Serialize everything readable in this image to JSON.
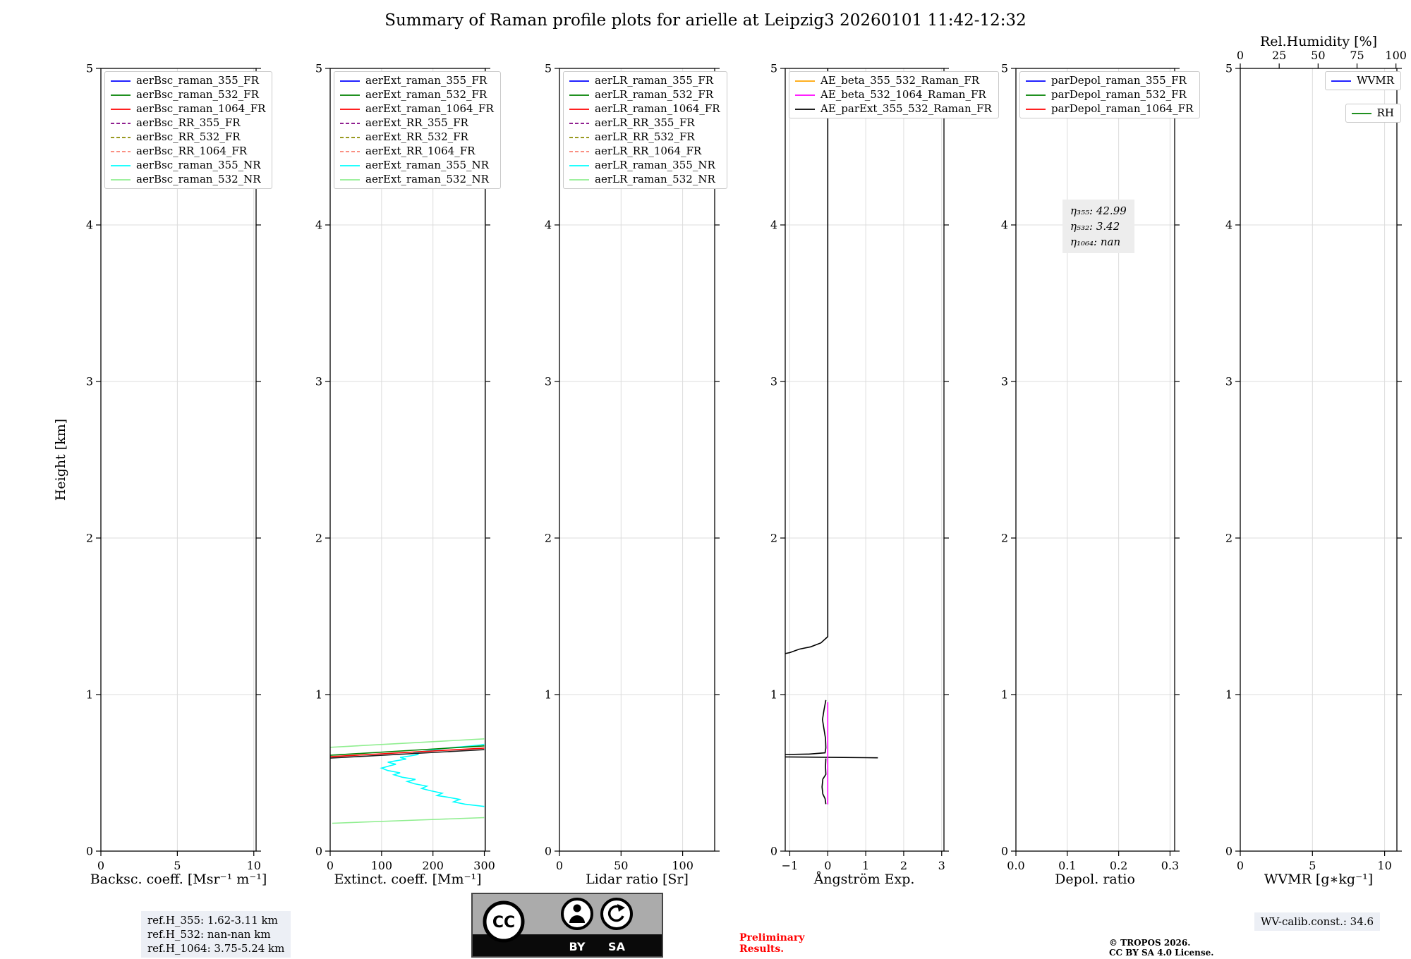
{
  "title": "Summary of Raman profile plots for arielle at Leipzig3 20260101 11:42-12:32",
  "chart_data": {
    "type": "line",
    "ylabel": "Height [km]",
    "ylim": [
      0,
      5
    ],
    "yticks": [
      0,
      1,
      2,
      3,
      4,
      5
    ],
    "panels": [
      {
        "name": "backscatter",
        "xlabel": "Backsc. coeff. [Msr⁻¹ m⁻¹]",
        "xlim": [
          0,
          10.15
        ],
        "xticks": [
          {
            "v": 0,
            "label": "0"
          },
          {
            "v": 5,
            "label": "5"
          },
          {
            "v": 10,
            "label": "10"
          }
        ],
        "legend": [
          {
            "label": "aerBsc_raman_355_FR",
            "color": "#0000ff",
            "dash": "solid"
          },
          {
            "label": "aerBsc_raman_532_FR",
            "color": "#008000",
            "dash": "solid"
          },
          {
            "label": "aerBsc_raman_1064_FR",
            "color": "#ff0000",
            "dash": "solid"
          },
          {
            "label": "aerBsc_RR_355_FR",
            "color": "#800080",
            "dash": "dashed"
          },
          {
            "label": "aerBsc_RR_532_FR",
            "color": "#8b8b00",
            "dash": "dashed"
          },
          {
            "label": "aerBsc_RR_1064_FR",
            "color": "#fa8072",
            "dash": "dashed"
          },
          {
            "label": "aerBsc_raman_355_NR",
            "color": "#00ffff",
            "dash": "solid"
          },
          {
            "label": "aerBsc_raman_532_NR",
            "color": "#90ee90",
            "dash": "solid"
          }
        ],
        "series": []
      },
      {
        "name": "extinction",
        "xlabel": "Extinct. coeff. [Mm⁻¹]",
        "xlim": [
          0,
          302
        ],
        "xticks": [
          {
            "v": 0,
            "label": "0"
          },
          {
            "v": 100,
            "label": "100"
          },
          {
            "v": 200,
            "label": "200"
          },
          {
            "v": 300,
            "label": "300"
          }
        ],
        "legend": [
          {
            "label": "aerExt_raman_355_FR",
            "color": "#0000ff",
            "dash": "solid"
          },
          {
            "label": "aerExt_raman_532_FR",
            "color": "#008000",
            "dash": "solid"
          },
          {
            "label": "aerExt_raman_1064_FR",
            "color": "#ff0000",
            "dash": "solid"
          },
          {
            "label": "aerExt_RR_355_FR",
            "color": "#800080",
            "dash": "dashed"
          },
          {
            "label": "aerExt_RR_532_FR",
            "color": "#8b8b00",
            "dash": "dashed"
          },
          {
            "label": "aerExt_RR_1064_FR",
            "color": "#fa8072",
            "dash": "dashed"
          },
          {
            "label": "aerExt_raman_355_NR",
            "color": "#00ffff",
            "dash": "solid"
          },
          {
            "label": "aerExt_raman_532_NR",
            "color": "#90ee90",
            "dash": "solid"
          }
        ],
        "series": [
          {
            "name": "aerExt_raman_532_NR",
            "color": "#90ee90",
            "dash": "solid",
            "points": [
              [
                4,
                0.178
              ],
              [
                150,
                0.196
              ],
              [
                300,
                0.214
              ]
            ]
          },
          {
            "name": "aerExt_raman_532_NR",
            "color": "#90ee90",
            "dash": "solid",
            "points": [
              [
                0,
                0.663
              ],
              [
                150,
                0.69
              ],
              [
                300,
                0.717
              ]
            ]
          },
          {
            "name": "aerExt_raman_355_NR",
            "color": "#00ffff",
            "dash": "solid",
            "points": [
              [
                300,
                0.285
              ],
              [
                262,
                0.3
              ],
              [
                240,
                0.315
              ],
              [
                252,
                0.33
              ],
              [
                228,
                0.345
              ],
              [
                208,
                0.355
              ],
              [
                218,
                0.37
              ],
              [
                196,
                0.385
              ],
              [
                178,
                0.4
              ],
              [
                188,
                0.415
              ],
              [
                164,
                0.43
              ],
              [
                150,
                0.445
              ],
              [
                166,
                0.458
              ],
              [
                140,
                0.472
              ],
              [
                124,
                0.488
              ],
              [
                136,
                0.5
              ],
              [
                112,
                0.515
              ],
              [
                100,
                0.53
              ],
              [
                116,
                0.545
              ],
              [
                128,
                0.555
              ],
              [
                112,
                0.568
              ],
              [
                130,
                0.578
              ],
              [
                148,
                0.588
              ],
              [
                136,
                0.598
              ],
              [
                156,
                0.608
              ],
              [
                172,
                0.617
              ],
              [
                162,
                0.627
              ],
              [
                182,
                0.637
              ],
              [
                200,
                0.646
              ],
              [
                220,
                0.655
              ],
              [
                244,
                0.663
              ],
              [
                268,
                0.67
              ],
              [
                292,
                0.678
              ],
              [
                300,
                0.682
              ]
            ]
          },
          {
            "name": "aerExt_raman_532_FR",
            "color": "#008000",
            "dash": "solid",
            "points": [
              [
                0,
                0.612
              ],
              [
                300,
                0.672
              ]
            ]
          },
          {
            "name": "aerExt_raman_1064_FR",
            "color": "#ff0000",
            "dash": "solid",
            "points": [
              [
                0,
                0.603
              ],
              [
                300,
                0.658
              ]
            ]
          },
          {
            "name": "aerExt_RR_532_FR",
            "color": "#1a1a1a",
            "dash": "solid",
            "points": [
              [
                0,
                0.594
              ],
              [
                300,
                0.648
              ]
            ]
          }
        ]
      },
      {
        "name": "lidar-ratio",
        "xlabel": "Lidar ratio [Sr]",
        "xlim": [
          0,
          126
        ],
        "xticks": [
          {
            "v": 0,
            "label": "0"
          },
          {
            "v": 50,
            "label": "50"
          },
          {
            "v": 100,
            "label": "100"
          }
        ],
        "legend": [
          {
            "label": "aerLR_raman_355_FR",
            "color": "#0000ff",
            "dash": "solid"
          },
          {
            "label": "aerLR_raman_532_FR",
            "color": "#008000",
            "dash": "solid"
          },
          {
            "label": "aerLR_raman_1064_FR",
            "color": "#ff0000",
            "dash": "solid"
          },
          {
            "label": "aerLR_RR_355_FR",
            "color": "#800080",
            "dash": "dashed"
          },
          {
            "label": "aerLR_RR_532_FR",
            "color": "#8b8b00",
            "dash": "dashed"
          },
          {
            "label": "aerLR_RR_1064_FR",
            "color": "#fa8072",
            "dash": "dashed"
          },
          {
            "label": "aerLR_raman_355_NR",
            "color": "#00ffff",
            "dash": "solid"
          },
          {
            "label": "aerLR_raman_532_NR",
            "color": "#90ee90",
            "dash": "solid"
          }
        ],
        "series": []
      },
      {
        "name": "angstroem",
        "xlabel": "Ångström Exp.",
        "xlim": [
          -1.12,
          3.06
        ],
        "xticks": [
          {
            "v": -1,
            "label": "−1"
          },
          {
            "v": 0,
            "label": "0"
          },
          {
            "v": 1,
            "label": "1"
          },
          {
            "v": 2,
            "label": "2"
          },
          {
            "v": 3,
            "label": "3"
          }
        ],
        "legend": [
          {
            "label": "AE_beta_355_532_Raman_FR",
            "color": "#ffa500",
            "dash": "solid"
          },
          {
            "label": "AE_beta_532_1064_Raman_FR",
            "color": "#ff00ff",
            "dash": "solid"
          },
          {
            "label": "AE_parExt_355_532_Raman_FR",
            "color": "#000000",
            "dash": "solid"
          }
        ],
        "series": [
          {
            "name": "AE_parExt_355_532_Raman_FR",
            "color": "#000000",
            "dash": "solid",
            "points": [
              [
                0,
                5
              ],
              [
                0,
                1.37
              ],
              [
                -0.18,
                1.33
              ],
              [
                -0.45,
                1.305
              ],
              [
                -0.75,
                1.29
              ],
              [
                -1.0,
                1.268
              ],
              [
                -1.12,
                1.262
              ]
            ]
          },
          {
            "name": "AE_parExt_355_532_Raman_FR",
            "color": "#000000",
            "dash": "solid",
            "points": [
              [
                -0.05,
                0.965
              ],
              [
                -0.1,
                0.9
              ],
              [
                -0.14,
                0.84
              ],
              [
                -0.1,
                0.78
              ],
              [
                -0.06,
                0.72
              ],
              [
                -0.05,
                0.66
              ],
              [
                -0.07,
                0.628
              ],
              [
                -0.5,
                0.62
              ],
              [
                -1.12,
                0.617
              ]
            ]
          },
          {
            "name": "AE_parExt_355_532_Raman_FR",
            "color": "#000000",
            "dash": "solid",
            "points": [
              [
                -1.12,
                0.602
              ],
              [
                -0.3,
                0.6
              ],
              [
                0.4,
                0.598
              ],
              [
                1.0,
                0.597
              ],
              [
                1.32,
                0.596
              ]
            ]
          },
          {
            "name": "AE_parExt_355_532_Raman_FR",
            "color": "#000000",
            "dash": "solid",
            "points": [
              [
                -0.05,
                0.592
              ],
              [
                -0.06,
                0.54
              ],
              [
                -0.05,
                0.49
              ],
              [
                -0.13,
                0.46
              ],
              [
                -0.15,
                0.41
              ],
              [
                -0.13,
                0.365
              ],
              [
                -0.07,
                0.335
              ],
              [
                -0.05,
                0.3
              ]
            ]
          },
          {
            "name": "AE_beta_532_1064_Raman_FR",
            "color": "#ff00ff",
            "dash": "solid",
            "points": [
              [
                0,
                0.952
              ],
              [
                0,
                0.298
              ]
            ]
          }
        ]
      },
      {
        "name": "depol",
        "xlabel": "Depol. ratio",
        "xlim": [
          0,
          0.309
        ],
        "xticks": [
          {
            "v": 0,
            "label": "0.0"
          },
          {
            "v": 0.1,
            "label": "0.1"
          },
          {
            "v": 0.2,
            "label": "0.2"
          },
          {
            "v": 0.3,
            "label": "0.3"
          }
        ],
        "legend": [
          {
            "label": "parDepol_raman_355_FR",
            "color": "#0000ff",
            "dash": "solid"
          },
          {
            "label": "parDepol_raman_532_FR",
            "color": "#008000",
            "dash": "solid"
          },
          {
            "label": "parDepol_raman_1064_FR",
            "color": "#ff0000",
            "dash": "solid"
          }
        ],
        "annotation": [
          "η₃₅₅: 42.99",
          "η₅₃₂: 3.42",
          "η₁₀₆₄: nan"
        ],
        "series": []
      },
      {
        "name": "wvmr",
        "xlabel": "WVMR [g∗kg⁻¹]",
        "xlim": [
          0,
          10.85
        ],
        "xticks": [
          {
            "v": 0,
            "label": "0"
          },
          {
            "v": 5,
            "label": "5"
          },
          {
            "v": 10,
            "label": "10"
          }
        ],
        "top_axis": {
          "label": "Rel.Humidity [%]",
          "xlim": [
            0,
            100.6
          ],
          "ticks": [
            {
              "v": 0,
              "label": "0"
            },
            {
              "v": 25,
              "label": "25"
            },
            {
              "v": 50,
              "label": "50"
            },
            {
              "v": 75,
              "label": "75"
            },
            {
              "v": 100,
              "label": "100"
            }
          ]
        },
        "legend": [
          {
            "label": "WVMR",
            "color": "#0000ff",
            "dash": "solid"
          }
        ],
        "legend2": [
          {
            "label": "RH",
            "color": "#008000",
            "dash": "solid"
          }
        ],
        "series": []
      }
    ]
  },
  "footer": {
    "refbox_lines": [
      "ref.H_355: 1.62-3.11 km",
      "ref.H_532: nan-nan km",
      "ref.H_1064: 3.75-5.24 km"
    ],
    "preliminary_lines": [
      "Preliminary",
      "Results."
    ],
    "copyright_lines": [
      "© TROPOS 2026.",
      "CC BY SA 4.0 License."
    ],
    "wv_calib": "WV-calib.const.: 34.6",
    "cc_badge": {
      "cc": "CC",
      "by": "BY",
      "sa": "SA"
    }
  }
}
